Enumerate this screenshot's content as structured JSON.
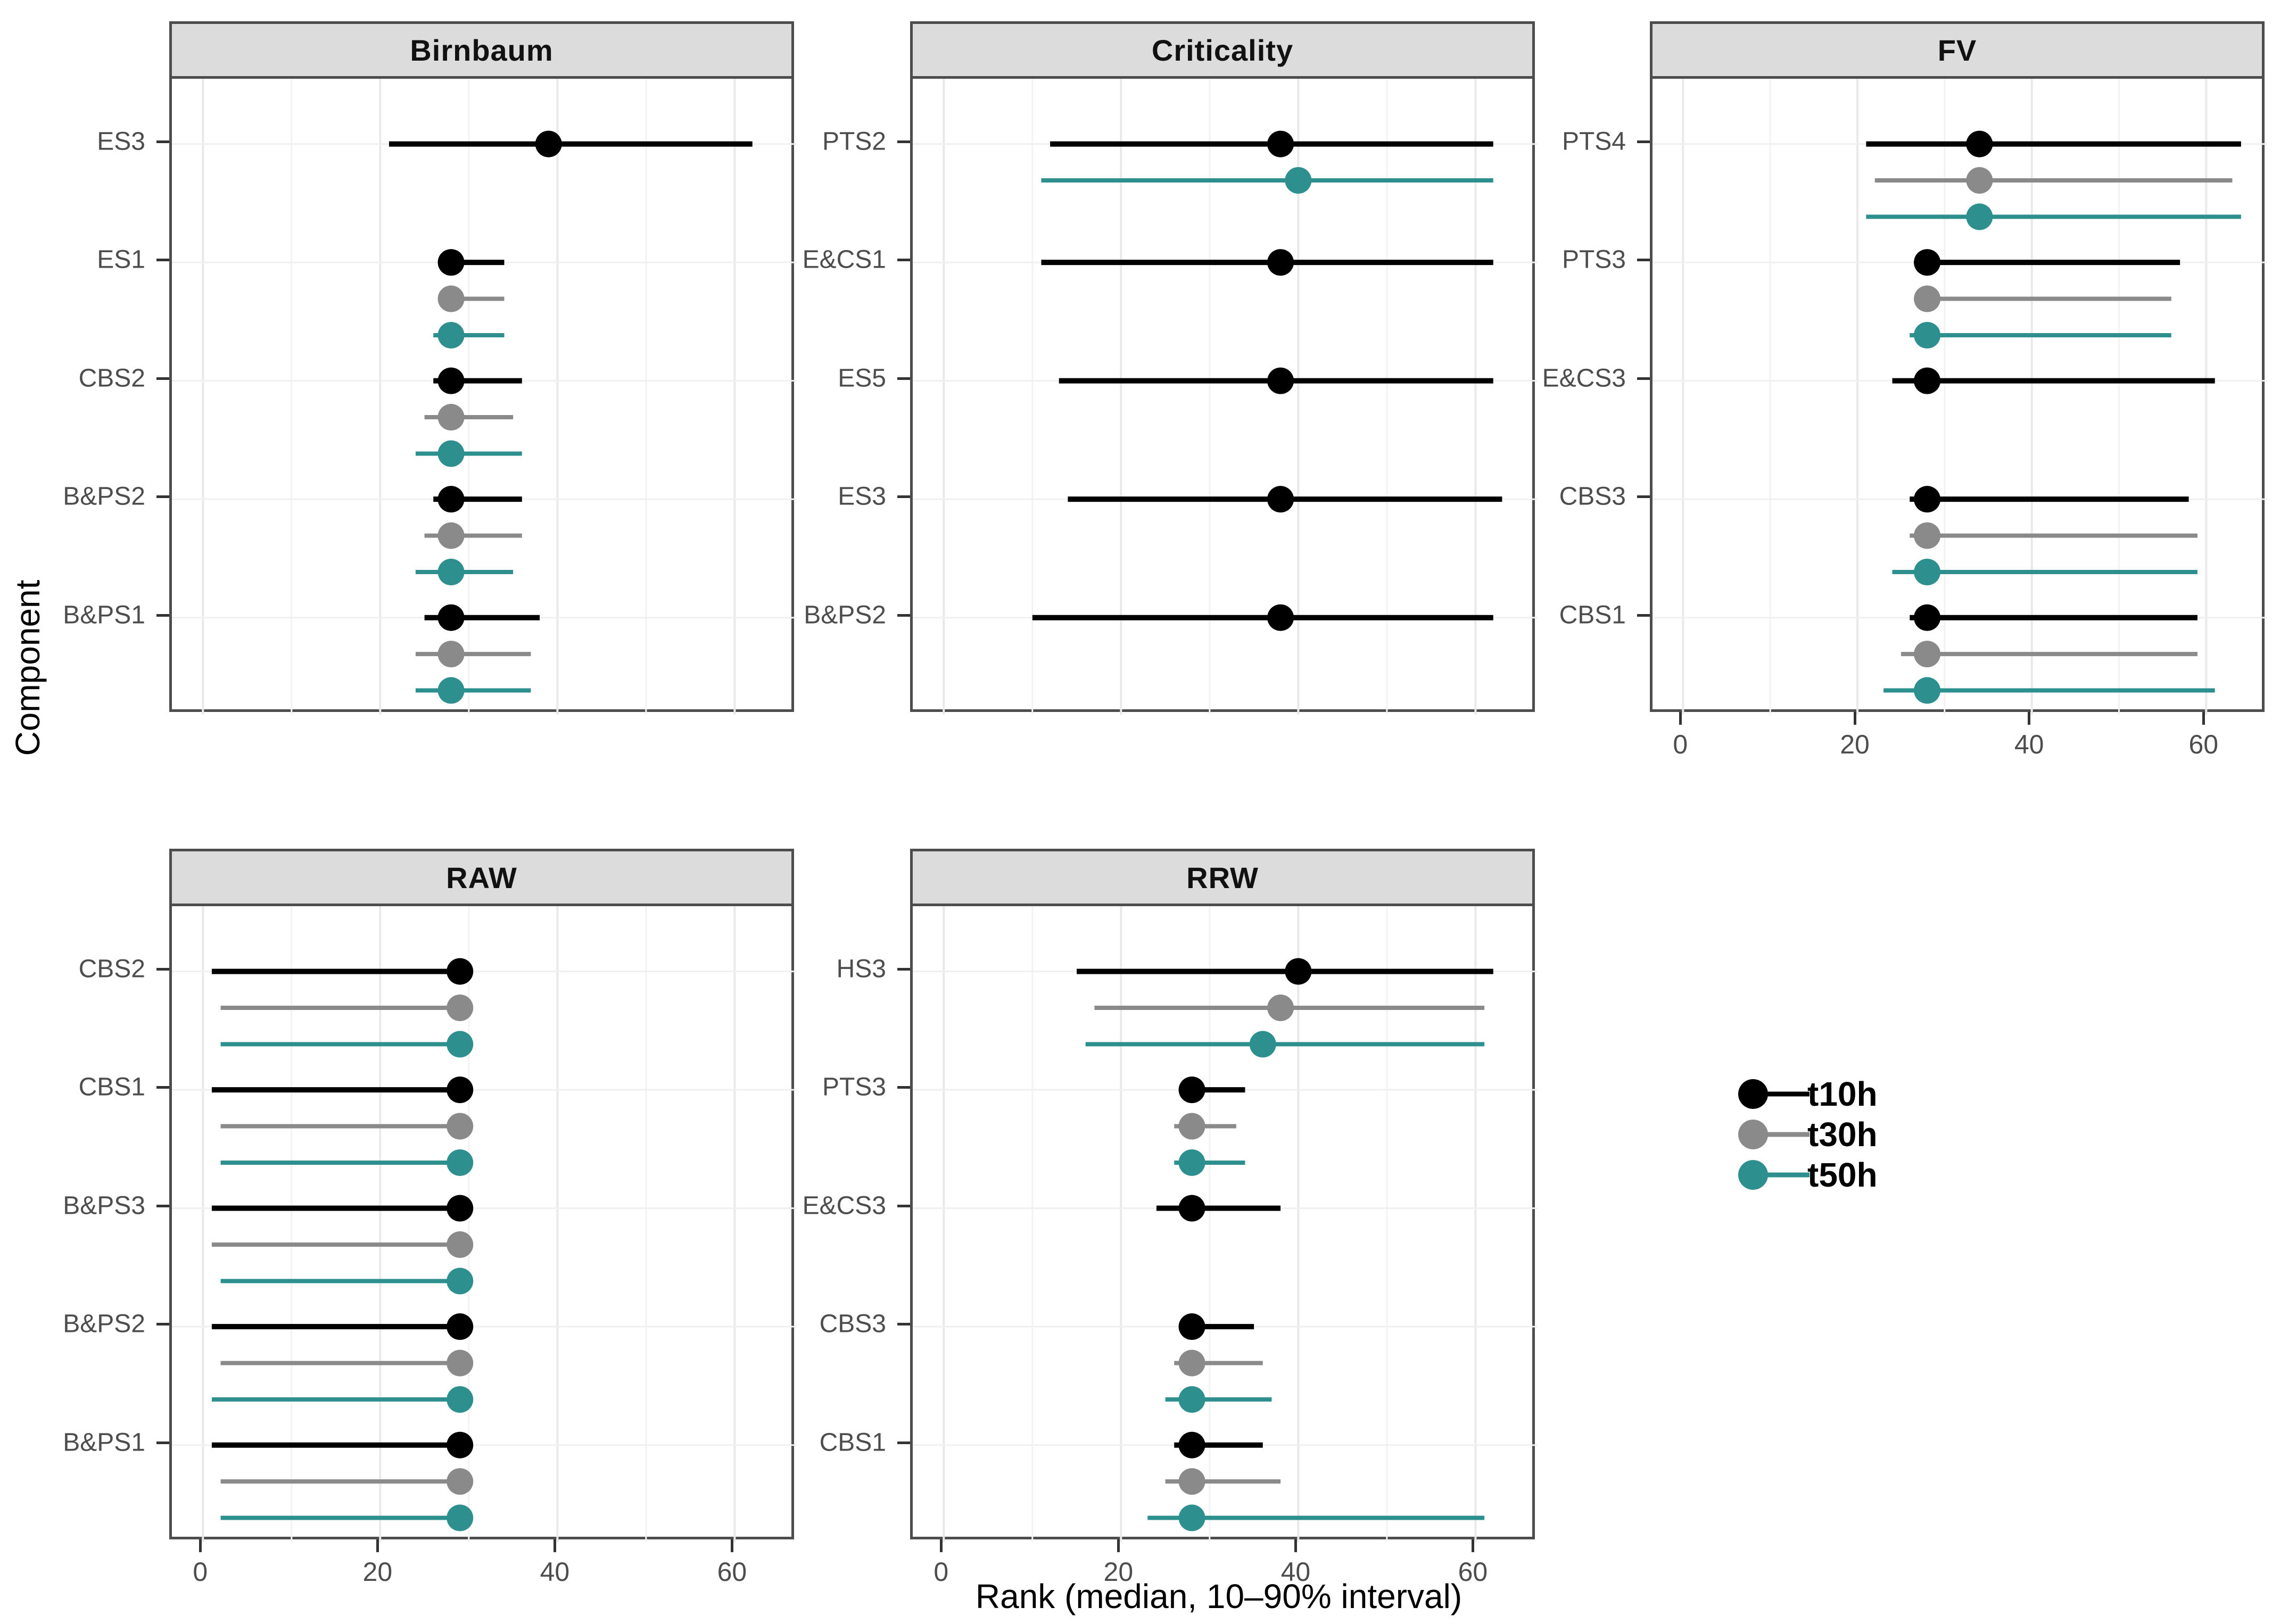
{
  "figure": {
    "xlabel": "Rank (median, 10–90% interval)",
    "ylabel": "Component",
    "x_ticks": [
      0,
      20,
      40,
      60
    ],
    "x_minor_ticks": [
      10,
      30,
      50
    ],
    "xlim": [
      -3.5,
      67
    ],
    "colors": {
      "panel_border": "#4d4d4d",
      "strip_background": "#dcdcdc",
      "major_grid": "#e9e9e9",
      "minor_grid": "#f3f3f3",
      "tick_label": "#4d4d4d"
    }
  },
  "legend": {
    "items": [
      {
        "label": "t10h",
        "color": "#000000"
      },
      {
        "label": "t30h",
        "color": "#8a8a8a"
      },
      {
        "label": "t50h",
        "color": "#2e8f8f"
      }
    ]
  },
  "chart_data": [
    {
      "type": "scatter",
      "subtype": "pointrange-horizontal",
      "title": "Birnbaum",
      "show_x_axis": false,
      "interval": "10-90%",
      "rows": [
        {
          "label": "ES3",
          "t10h": [
            21,
            39,
            62
          ],
          "t30h": null,
          "t50h": null
        },
        {
          "label": "ES1",
          "t10h": [
            27,
            28,
            34
          ],
          "t30h": [
            27,
            28,
            34
          ],
          "t50h": [
            26,
            28,
            34
          ]
        },
        {
          "label": "CBS2",
          "t10h": [
            26,
            28,
            36
          ],
          "t30h": [
            25,
            28,
            35
          ],
          "t50h": [
            24,
            28,
            36
          ]
        },
        {
          "label": "B&PS2",
          "t10h": [
            26,
            28,
            36
          ],
          "t30h": [
            25,
            28,
            36
          ],
          "t50h": [
            24,
            28,
            35
          ]
        },
        {
          "label": "B&PS1",
          "t10h": [
            25,
            28,
            38
          ],
          "t30h": [
            24,
            28,
            37
          ],
          "t50h": [
            24,
            28,
            37
          ]
        }
      ]
    },
    {
      "type": "scatter",
      "subtype": "pointrange-horizontal",
      "title": "Criticality",
      "show_x_axis": false,
      "interval": "10-90%",
      "rows": [
        {
          "label": "PTS2",
          "t10h": [
            12,
            38,
            62
          ],
          "t30h": null,
          "t50h": [
            11,
            40,
            62
          ]
        },
        {
          "label": "E&CS1",
          "t10h": [
            11,
            38,
            62
          ],
          "t30h": null,
          "t50h": null
        },
        {
          "label": "ES5",
          "t10h": [
            13,
            38,
            62
          ],
          "t30h": null,
          "t50h": null
        },
        {
          "label": "ES3",
          "t10h": [
            14,
            38,
            63
          ],
          "t30h": null,
          "t50h": null
        },
        {
          "label": "B&PS2",
          "t10h": [
            10,
            38,
            62
          ],
          "t30h": null,
          "t50h": null
        }
      ]
    },
    {
      "type": "scatter",
      "subtype": "pointrange-horizontal",
      "title": "FV",
      "show_x_axis": true,
      "interval": "10-90%",
      "rows": [
        {
          "label": "PTS4",
          "t10h": [
            21,
            34,
            64
          ],
          "t30h": [
            22,
            34,
            63
          ],
          "t50h": [
            21,
            34,
            64
          ]
        },
        {
          "label": "PTS3",
          "t10h": [
            27,
            28,
            57
          ],
          "t30h": [
            27,
            28,
            56
          ],
          "t50h": [
            26,
            28,
            56
          ]
        },
        {
          "label": "E&CS3",
          "t10h": [
            24,
            28,
            61
          ],
          "t30h": null,
          "t50h": null
        },
        {
          "label": "CBS3",
          "t10h": [
            26,
            28,
            58
          ],
          "t30h": [
            26,
            28,
            59
          ],
          "t50h": [
            24,
            28,
            59
          ]
        },
        {
          "label": "CBS1",
          "t10h": [
            26,
            28,
            59
          ],
          "t30h": [
            25,
            28,
            59
          ],
          "t50h": [
            23,
            28,
            61
          ]
        }
      ]
    },
    {
      "type": "scatter",
      "subtype": "pointrange-horizontal",
      "title": "RAW",
      "show_x_axis": true,
      "interval": "10-90%",
      "rows": [
        {
          "label": "CBS2",
          "t10h": [
            1,
            29,
            30
          ],
          "t30h": [
            2,
            29,
            30
          ],
          "t50h": [
            2,
            29,
            30
          ]
        },
        {
          "label": "CBS1",
          "t10h": [
            1,
            29,
            30
          ],
          "t30h": [
            2,
            29,
            30
          ],
          "t50h": [
            2,
            29,
            30
          ]
        },
        {
          "label": "B&PS3",
          "t10h": [
            1,
            29,
            30
          ],
          "t30h": [
            1,
            29,
            30
          ],
          "t50h": [
            2,
            29,
            30
          ]
        },
        {
          "label": "B&PS2",
          "t10h": [
            1,
            29,
            30
          ],
          "t30h": [
            2,
            29,
            30
          ],
          "t50h": [
            1,
            29,
            30
          ]
        },
        {
          "label": "B&PS1",
          "t10h": [
            1,
            29,
            30
          ],
          "t30h": [
            2,
            29,
            30
          ],
          "t50h": [
            2,
            29,
            30
          ]
        }
      ]
    },
    {
      "type": "scatter",
      "subtype": "pointrange-horizontal",
      "title": "RRW",
      "show_x_axis": true,
      "interval": "10-90%",
      "rows": [
        {
          "label": "HS3",
          "t10h": [
            15,
            40,
            62
          ],
          "t30h": [
            17,
            38,
            61
          ],
          "t50h": [
            16,
            36,
            61
          ]
        },
        {
          "label": "PTS3",
          "t10h": [
            27,
            28,
            34
          ],
          "t30h": [
            26,
            28,
            33
          ],
          "t50h": [
            26,
            28,
            34
          ]
        },
        {
          "label": "E&CS3",
          "t10h": [
            24,
            28,
            38
          ],
          "t30h": null,
          "t50h": null
        },
        {
          "label": "CBS3",
          "t10h": [
            27,
            28,
            35
          ],
          "t30h": [
            26,
            28,
            36
          ],
          "t50h": [
            25,
            28,
            37
          ]
        },
        {
          "label": "CBS1",
          "t10h": [
            26,
            28,
            36
          ],
          "t30h": [
            25,
            28,
            38
          ],
          "t50h": [
            23,
            28,
            61
          ]
        }
      ]
    }
  ]
}
